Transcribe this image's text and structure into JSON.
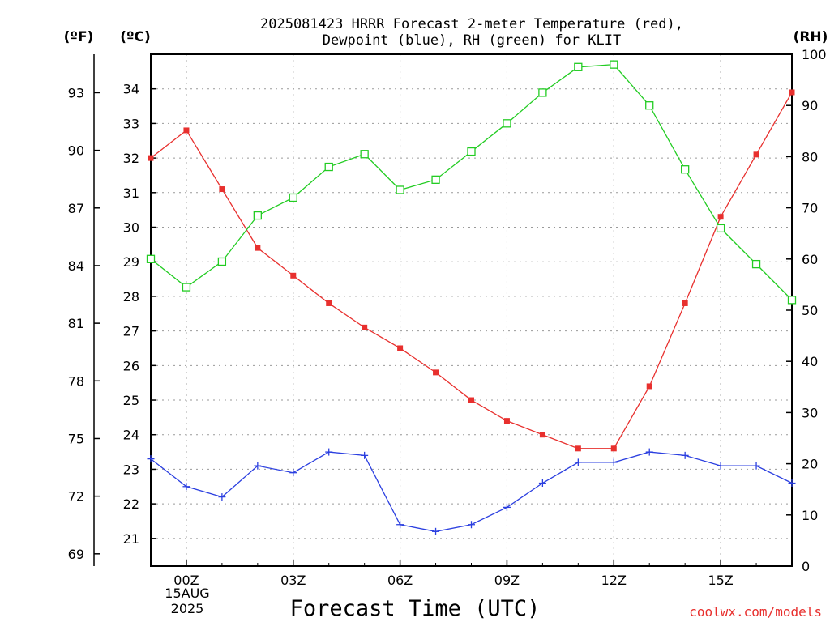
{
  "chart_data": {
    "type": "line",
    "title_lines": [
      "2025081423 HRRR Forecast 2-meter Temperature (red),",
      "Dewpoint (blue), RH (green) for KLIT"
    ],
    "xlabel": "Forecast Time (UTC)",
    "x_hours": [
      -1,
      0,
      1,
      2,
      3,
      4,
      5,
      6,
      7,
      8,
      9,
      10,
      11,
      12,
      13,
      14,
      15,
      16,
      17
    ],
    "x_range": [
      -1,
      17
    ],
    "x_ticks": [
      {
        "hour": 0,
        "label": "00Z"
      },
      {
        "hour": 3,
        "label": "03Z"
      },
      {
        "hour": 6,
        "label": "06Z"
      },
      {
        "hour": 9,
        "label": "09Z"
      },
      {
        "hour": 12,
        "label": "12Z"
      },
      {
        "hour": 15,
        "label": "15Z"
      }
    ],
    "date_label": [
      "15AUG",
      "2025"
    ],
    "left_c_axis": {
      "unit": "(ºC)",
      "range": [
        20.2,
        35
      ],
      "ticks": [
        "21",
        "22",
        "23",
        "24",
        "25",
        "26",
        "27",
        "28",
        "29",
        "30",
        "31",
        "32",
        "33",
        "34"
      ]
    },
    "left_f_axis": {
      "unit": "(ºF)",
      "ticks": [
        "69",
        "72",
        "75",
        "78",
        "81",
        "84",
        "87",
        "90",
        "93"
      ]
    },
    "right_rh_axis": {
      "unit": "(RH)",
      "range": [
        0,
        100
      ],
      "ticks": [
        "0",
        "10",
        "20",
        "30",
        "40",
        "50",
        "60",
        "70",
        "80",
        "90",
        "100"
      ]
    },
    "grid": true,
    "series": [
      {
        "name": "Temperature",
        "color": "#e8302e",
        "marker": "filled-square",
        "axis": "left",
        "values": [
          32.0,
          32.8,
          31.1,
          29.4,
          28.6,
          27.8,
          27.1,
          26.5,
          25.8,
          25.0,
          24.4,
          24.0,
          23.6,
          23.6,
          25.4,
          27.8,
          30.3,
          32.1,
          33.9
        ]
      },
      {
        "name": "Dewpoint",
        "color": "#2b3fe0",
        "marker": "plus",
        "axis": "left",
        "values": [
          23.3,
          22.5,
          22.2,
          23.1,
          22.9,
          23.5,
          23.4,
          21.4,
          21.2,
          21.4,
          21.9,
          22.6,
          23.2,
          23.2,
          23.5,
          23.4,
          23.1,
          23.1,
          22.6
        ]
      },
      {
        "name": "RH",
        "color": "#22cc22",
        "marker": "open-square",
        "axis": "right",
        "values": [
          60,
          54.5,
          59.5,
          68.5,
          72,
          78,
          80.5,
          73.5,
          75.5,
          81,
          86.5,
          92.5,
          97.5,
          98,
          90,
          77.5,
          66,
          59,
          52
        ]
      }
    ],
    "watermark": "coolwx.com/models"
  }
}
